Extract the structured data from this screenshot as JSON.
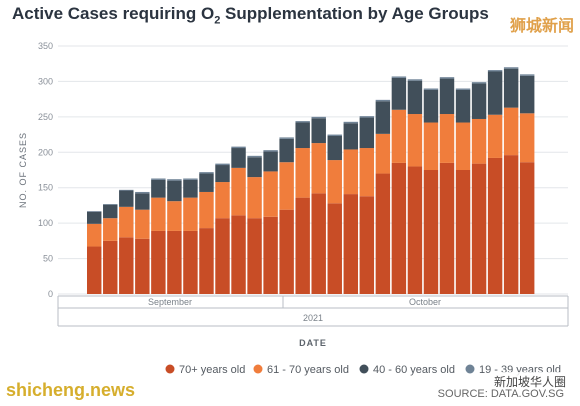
{
  "chart_data": {
    "type": "bar",
    "stacked": true,
    "title": "Active Cases requiring O",
    "title_subscript": "2",
    "title_rest": " Supplementation by Age Groups",
    "ylabel": "NO. OF CASES",
    "xlabel": "DATE",
    "ylim": [
      0,
      350
    ],
    "y_ticks": [
      0,
      50,
      100,
      150,
      200,
      250,
      300,
      350
    ],
    "month_labels": [
      "September",
      "October"
    ],
    "year_label": "2021",
    "grid": true,
    "legend_position": "bottom-right",
    "series": [
      {
        "name": "70+ years old",
        "color": "#c84d26",
        "values": [
          67,
          75,
          80,
          78,
          89,
          89,
          89,
          93,
          107,
          111,
          107,
          109,
          119,
          136,
          142,
          128,
          141,
          138,
          170,
          185,
          180,
          175,
          185,
          175,
          184,
          192,
          196,
          186
        ]
      },
      {
        "name": "61 - 70 years old",
        "color": "#f07d3c",
        "values": [
          32,
          32,
          43,
          41,
          47,
          42,
          47,
          51,
          51,
          67,
          58,
          64,
          67,
          70,
          71,
          61,
          63,
          68,
          56,
          75,
          74,
          67,
          69,
          67,
          63,
          61,
          67,
          69
        ]
      },
      {
        "name": "40 - 60 years old",
        "color": "#414f5a",
        "values": [
          17,
          19,
          23,
          23,
          25,
          29,
          25,
          26,
          24,
          28,
          28,
          28,
          33,
          36,
          35,
          34,
          37,
          43,
          46,
          45,
          47,
          46,
          50,
          46,
          50,
          61,
          55,
          53
        ]
      },
      {
        "name": "19 - 39 years old",
        "color": "#6f8396",
        "values": [
          1,
          1,
          1,
          2,
          2,
          2,
          2,
          2,
          2,
          2,
          2,
          2,
          2,
          2,
          2,
          2,
          2,
          2,
          2,
          2,
          2,
          2,
          2,
          2,
          2,
          2,
          2,
          2
        ]
      }
    ]
  },
  "watermarks": {
    "top_right": "狮城新闻",
    "bottom_left": "shicheng.news",
    "bottom_right": "新加坡华人圈"
  },
  "source": "SOURCE: DATA.GOV.SG"
}
